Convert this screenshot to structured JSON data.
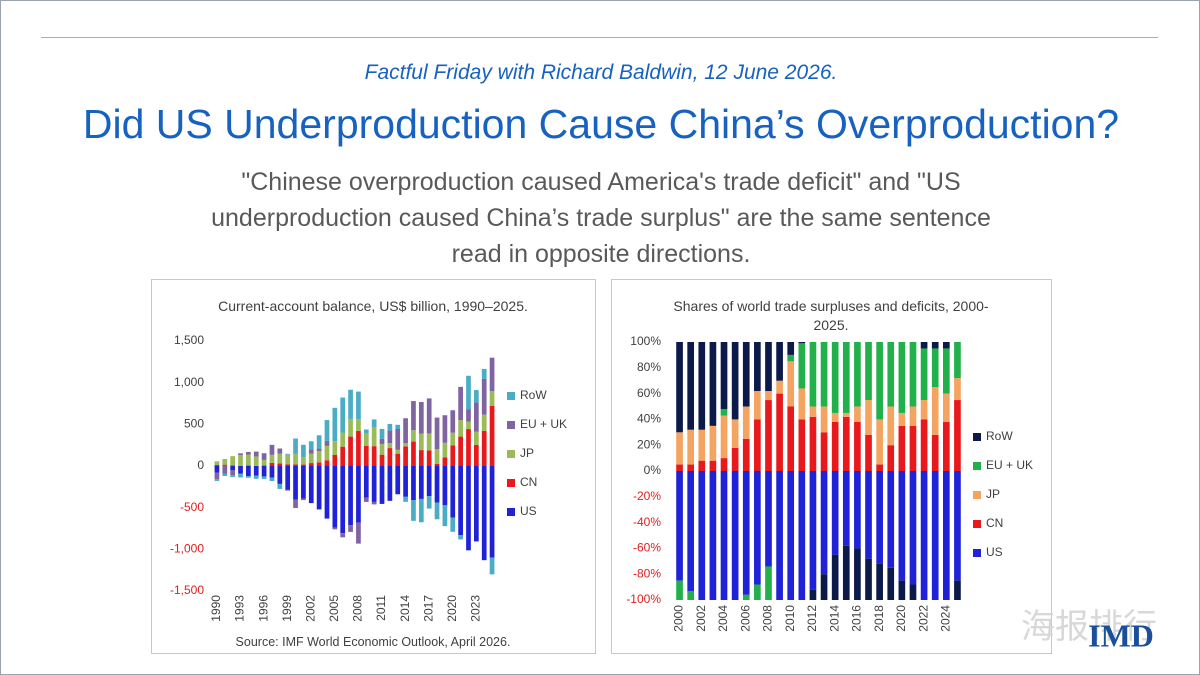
{
  "header": {
    "subtitle": "Factful Friday with Richard Baldwin, 12 June 2026.",
    "title": "Did US Underproduction Cause China’s Overproduction?",
    "quote": "\"Chinese overproduction caused America's trade deficit\" and \"US underproduction caused China’s trade surplus\" are the same sentence read in opposite directions."
  },
  "logo": "IMD",
  "watermark": "海报排行",
  "chart_data": [
    {
      "type": "stacked_bar",
      "title": "Current-account balance, US$ billion, 1990–2025.",
      "source": "Source: IMF World Economic Outlook, April 2026.",
      "categories": [
        "1990",
        null,
        null,
        "1993",
        null,
        null,
        "1996",
        null,
        null,
        "1999",
        null,
        null,
        "2002",
        null,
        null,
        "2005",
        null,
        null,
        "2008",
        null,
        null,
        "2011",
        null,
        null,
        "2014",
        null,
        null,
        "2017",
        null,
        null,
        "2020",
        null,
        null,
        "2023",
        null,
        null
      ],
      "ylim": [
        -1500,
        1500
      ],
      "yticks": [
        {
          "value": -1500,
          "label": "-1,500"
        },
        {
          "value": -1000,
          "label": "-1,000"
        },
        -500,
        0,
        500,
        {
          "value": 1000,
          "label": "1,000"
        },
        {
          "value": 1500,
          "label": "1,500"
        }
      ],
      "negative_tick_color": "#e02020",
      "series": [
        {
          "name": "US",
          "color": "#1f22d6",
          "values": [
            -79,
            3,
            -52,
            -85,
            -122,
            -114,
            -125,
            -141,
            -215,
            -286,
            -404,
            -389,
            -445,
            -521,
            -631,
            -740,
            -806,
            -711,
            -681,
            -381,
            -431,
            -455,
            -418,
            -339,
            -370,
            -408,
            -395,
            -361,
            -439,
            -472,
            -619,
            -831,
            -1012,
            -905,
            -1130,
            -1100
          ]
        },
        {
          "name": "CN",
          "color": "#e8191c",
          "values": [
            12,
            13,
            6,
            -12,
            8,
            2,
            7,
            37,
            31,
            21,
            20,
            17,
            35,
            43,
            69,
            132,
            232,
            353,
            421,
            243,
            238,
            136,
            215,
            148,
            236,
            293,
            191,
            188,
            24,
            103,
            249,
            353,
            443,
            253,
            422,
            720
          ]
        },
        {
          "name": "JP",
          "color": "#9bbb59",
          "values": [
            44,
            68,
            112,
            132,
            130,
            111,
            66,
            97,
            119,
            115,
            130,
            88,
            112,
            136,
            172,
            166,
            170,
            212,
            142,
            145,
            221,
            129,
            60,
            46,
            37,
            136,
            197,
            203,
            177,
            176,
            150,
            197,
            90,
            158,
            193,
            180
          ]
        },
        {
          "name": "EU + UK",
          "color": "#8064a2",
          "values": [
            -80,
            -90,
            -60,
            20,
            30,
            60,
            80,
            120,
            60,
            -10,
            -100,
            -20,
            50,
            30,
            60,
            -20,
            -50,
            -80,
            -250,
            -50,
            -30,
            60,
            150,
            250,
            300,
            350,
            380,
            420,
            380,
            330,
            270,
            400,
            150,
            350,
            430,
            400
          ]
        },
        {
          "name": "RoW",
          "color": "#4bacc6",
          "values": [
            -20,
            -30,
            -20,
            -40,
            -20,
            -40,
            -30,
            -40,
            -60,
            10,
            180,
            150,
            100,
            160,
            250,
            400,
            420,
            350,
            330,
            50,
            100,
            120,
            80,
            50,
            -60,
            -250,
            -280,
            -150,
            -200,
            -250,
            -170,
            -50,
            400,
            150,
            120,
            -200
          ]
        }
      ]
    },
    {
      "type": "stacked_bar",
      "title": "Shares of world trade surpluses and deficits, 2000-2025.",
      "categories": [
        "2000",
        null,
        "2002",
        null,
        "2004",
        null,
        "2006",
        null,
        "2008",
        null,
        "2010",
        null,
        "2012",
        null,
        "2014",
        null,
        "2016",
        null,
        "2018",
        null,
        "2020",
        null,
        "2022",
        null,
        "2024",
        null
      ],
      "ylim": [
        -100,
        100
      ],
      "yticks": [
        {
          "value": -100,
          "label": "-100%"
        },
        {
          "value": -80,
          "label": "-80%"
        },
        {
          "value": -60,
          "label": "-60%"
        },
        {
          "value": -40,
          "label": "-40%"
        },
        {
          "value": -20,
          "label": "-20%"
        },
        {
          "value": 0,
          "label": "0%"
        },
        {
          "value": 20,
          "label": "20%"
        },
        {
          "value": 40,
          "label": "40%"
        },
        {
          "value": 60,
          "label": "60%"
        },
        {
          "value": 80,
          "label": "80%"
        },
        {
          "value": 100,
          "label": "100%"
        }
      ],
      "negative_tick_color": "#e02020",
      "series": [
        {
          "name": "US",
          "color": "#1f22d6",
          "values": [
            -85,
            -93,
            -100,
            -100,
            -100,
            -100,
            -96,
            -88,
            -74,
            -100,
            -100,
            -100,
            -92,
            -80,
            -65,
            -58,
            -60,
            -68,
            -72,
            -75,
            -85,
            -88,
            -100,
            -100,
            -100,
            -85
          ]
        },
        {
          "name": "CN",
          "color": "#e8191c",
          "values": [
            5,
            5,
            8,
            8,
            10,
            18,
            25,
            40,
            55,
            60,
            50,
            40,
            42,
            30,
            38,
            42,
            38,
            28,
            5,
            20,
            35,
            35,
            40,
            28,
            38,
            55
          ]
        },
        {
          "name": "JP",
          "color": "#f4a460",
          "values": [
            25,
            27,
            24,
            27,
            33,
            22,
            25,
            22,
            7,
            10,
            35,
            24,
            8,
            20,
            7,
            3,
            12,
            27,
            35,
            30,
            10,
            15,
            15,
            37,
            22,
            17
          ]
        },
        {
          "name": "EU + UK",
          "color": "#22b04b",
          "values": [
            -15,
            -7,
            0,
            0,
            5,
            0,
            -4,
            -12,
            -26,
            0,
            5,
            35,
            50,
            50,
            55,
            55,
            50,
            45,
            60,
            50,
            55,
            50,
            40,
            30,
            35,
            28
          ]
        },
        {
          "name": "RoW",
          "color": "#0c1a4a",
          "values": [
            70,
            68,
            68,
            65,
            52,
            60,
            50,
            38,
            38,
            30,
            10,
            1,
            -8,
            -20,
            -35,
            -42,
            -40,
            -32,
            -28,
            -25,
            -15,
            -12,
            5,
            5,
            5,
            -15
          ]
        }
      ]
    }
  ]
}
